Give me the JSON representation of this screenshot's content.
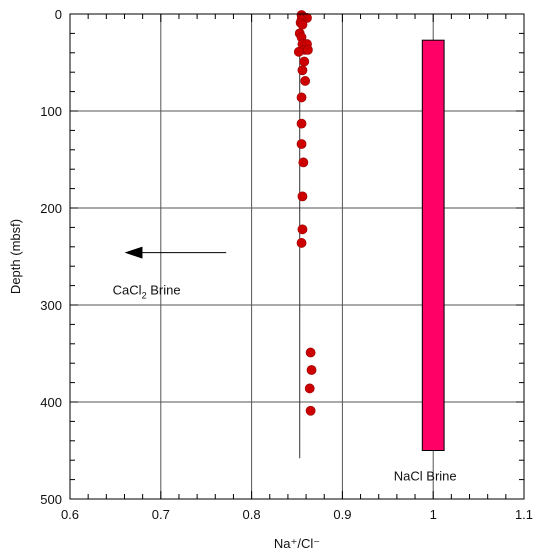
{
  "chart_data": {
    "type": "scatter",
    "xlabel": "Na⁺/Cl⁻",
    "ylabel": "Depth (mbsf)",
    "xlim": [
      0.6,
      1.1
    ],
    "ylim": [
      0,
      500
    ],
    "y_inverted": true,
    "grid": true,
    "x_ticks": [
      0.6,
      0.7,
      0.8,
      0.9,
      1,
      1.1
    ],
    "x_tick_labels": [
      "0.6",
      "0.7",
      "0.8",
      "0.9",
      "1",
      "1.1"
    ],
    "y_ticks": [
      0,
      100,
      200,
      300,
      400,
      500
    ],
    "y_tick_labels": [
      "0",
      "100",
      "200",
      "300",
      "400",
      "500"
    ],
    "series": [
      {
        "marker_color": "#cc0000",
        "points": [
          {
            "x": 0.855,
            "y": 1
          },
          {
            "x": 0.857,
            "y": 3
          },
          {
            "x": 0.861,
            "y": 4
          },
          {
            "x": 0.855,
            "y": 6
          },
          {
            "x": 0.854,
            "y": 9
          },
          {
            "x": 0.856,
            "y": 11
          },
          {
            "x": 0.853,
            "y": 20
          },
          {
            "x": 0.855,
            "y": 24
          },
          {
            "x": 0.856,
            "y": 31
          },
          {
            "x": 0.861,
            "y": 31
          },
          {
            "x": 0.859,
            "y": 37
          },
          {
            "x": 0.862,
            "y": 37
          },
          {
            "x": 0.852,
            "y": 39
          },
          {
            "x": 0.858,
            "y": 49
          },
          {
            "x": 0.856,
            "y": 58
          },
          {
            "x": 0.859,
            "y": 69
          },
          {
            "x": 0.855,
            "y": 86
          },
          {
            "x": 0.855,
            "y": 113
          },
          {
            "x": 0.855,
            "y": 134
          },
          {
            "x": 0.857,
            "y": 153
          },
          {
            "x": 0.856,
            "y": 188
          },
          {
            "x": 0.856,
            "y": 222
          },
          {
            "x": 0.855,
            "y": 236
          },
          {
            "x": 0.865,
            "y": 349
          },
          {
            "x": 0.866,
            "y": 367
          },
          {
            "x": 0.864,
            "y": 386
          },
          {
            "x": 0.865,
            "y": 409
          }
        ]
      }
    ],
    "reference_line": {
      "x": 0.853,
      "y_from": 0,
      "y_to": 458,
      "color": "#333333"
    },
    "range_bar": {
      "label": "NaCl Brine",
      "x_from": 0.988,
      "x_to": 1.012,
      "y_from": 27,
      "y_to": 450,
      "color": "#ff0066"
    },
    "arrow": {
      "label_main": "CaCl",
      "label_sub": "2",
      "label_rest": " Brine",
      "x_from": 0.772,
      "x_to": 0.66,
      "y": 246,
      "label_x": 0.647,
      "label_y": 285
    }
  }
}
